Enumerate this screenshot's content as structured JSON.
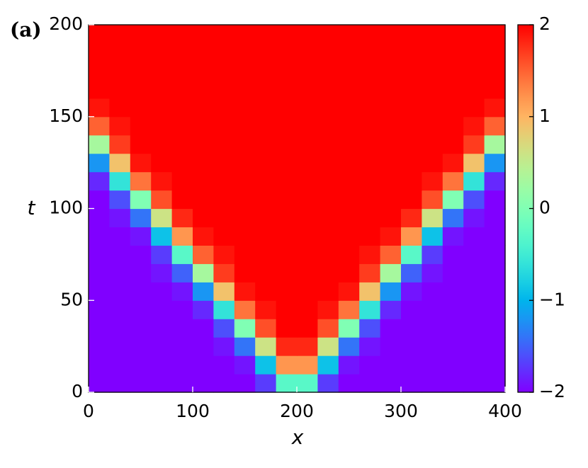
{
  "chart_data": {
    "type": "heatmap",
    "panel_label": "(a)",
    "xlabel": "x",
    "ylabel": "t",
    "colormap": "rainbow",
    "xlim": [
      0,
      400
    ],
    "ylim": [
      0,
      200
    ],
    "xticks": [
      0,
      100,
      200,
      300,
      400
    ],
    "yticks": [
      0,
      50,
      100,
      150,
      200
    ],
    "x": [
      10,
      30,
      50,
      70,
      90,
      110,
      130,
      150,
      170,
      190,
      210,
      230,
      250,
      270,
      290,
      310,
      330,
      350,
      370,
      390
    ],
    "y": [
      5,
      15,
      25,
      35,
      45,
      55,
      65,
      75,
      85,
      95,
      105,
      115,
      125,
      135,
      145,
      155,
      165,
      175,
      185,
      195
    ],
    "z": [
      [
        -2,
        -2,
        -2,
        -2,
        -2,
        -2,
        -2,
        -2,
        -1.7,
        -0.3,
        -0.3,
        -1.7,
        -2,
        -2,
        -2,
        -2,
        -2,
        -2,
        -2,
        -2
      ],
      [
        -2,
        -2,
        -2,
        -2,
        -2,
        -2,
        -2,
        -1.9,
        -0.9,
        1.2,
        1.2,
        -0.9,
        -1.9,
        -2,
        -2,
        -2,
        -2,
        -2,
        -2,
        -2
      ],
      [
        -2,
        -2,
        -2,
        -2,
        -2,
        -2,
        -1.9,
        -1.4,
        0.6,
        1.8,
        1.8,
        0.6,
        -1.4,
        -1.9,
        -2,
        -2,
        -2,
        -2,
        -2,
        -2
      ],
      [
        -2,
        -2,
        -2,
        -2,
        -2,
        -2,
        -1.6,
        0,
        1.6,
        2,
        2,
        1.6,
        0,
        -1.6,
        -2,
        -2,
        -2,
        -2,
        -2,
        -2
      ],
      [
        -2,
        -2,
        -2,
        -2,
        -2,
        -1.8,
        -0.6,
        1.4,
        1.9,
        2,
        2,
        1.9,
        1.4,
        -0.6,
        -1.8,
        -2,
        -2,
        -2,
        -2,
        -2
      ],
      [
        -2,
        -2,
        -2,
        -2,
        -1.9,
        -1.2,
        0.9,
        1.9,
        2,
        2,
        2,
        2,
        1.9,
        0.9,
        -1.2,
        -1.9,
        -2,
        -2,
        -2,
        -2
      ],
      [
        -2,
        -2,
        -2,
        -1.9,
        -1.5,
        0.3,
        1.7,
        2,
        2,
        2,
        2,
        2,
        2,
        1.7,
        0.3,
        -1.5,
        -1.9,
        -2,
        -2,
        -2
      ],
      [
        -2,
        -2,
        -2,
        -1.7,
        -0.3,
        1.5,
        1.9,
        2,
        2,
        2,
        2,
        2,
        2,
        1.9,
        1.5,
        -0.3,
        -1.7,
        -2,
        -2,
        -2
      ],
      [
        -2,
        -2,
        -1.9,
        -0.9,
        1.2,
        1.9,
        2,
        2,
        2,
        2,
        2,
        2,
        2,
        2,
        1.9,
        1.2,
        -0.9,
        -1.9,
        -2,
        -2
      ],
      [
        -2,
        -1.9,
        -1.4,
        0.6,
        1.8,
        2,
        2,
        2,
        2,
        2,
        2,
        2,
        2,
        2,
        2,
        1.8,
        0.6,
        -1.4,
        -1.9,
        -2
      ],
      [
        -2,
        -1.6,
        0,
        1.6,
        2,
        2,
        2,
        2,
        2,
        2,
        2,
        2,
        2,
        2,
        2,
        2,
        1.6,
        0,
        -1.6,
        -2
      ],
      [
        -1.8,
        -0.6,
        1.4,
        1.9,
        2,
        2,
        2,
        2,
        2,
        2,
        2,
        2,
        2,
        2,
        2,
        2,
        1.9,
        1.4,
        -0.6,
        -1.8
      ],
      [
        -1.2,
        0.9,
        1.9,
        2,
        2,
        2,
        2,
        2,
        2,
        2,
        2,
        2,
        2,
        2,
        2,
        2,
        2,
        1.9,
        0.9,
        -1.2
      ],
      [
        0.3,
        1.7,
        2,
        2,
        2,
        2,
        2,
        2,
        2,
        2,
        2,
        2,
        2,
        2,
        2,
        2,
        2,
        2,
        1.7,
        0.3
      ],
      [
        1.5,
        1.9,
        2,
        2,
        2,
        2,
        2,
        2,
        2,
        2,
        2,
        2,
        2,
        2,
        2,
        2,
        2,
        2,
        1.9,
        1.5
      ],
      [
        1.9,
        2,
        2,
        2,
        2,
        2,
        2,
        2,
        2,
        2,
        2,
        2,
        2,
        2,
        2,
        2,
        2,
        2,
        2,
        1.9
      ],
      [
        2,
        2,
        2,
        2,
        2,
        2,
        2,
        2,
        2,
        2,
        2,
        2,
        2,
        2,
        2,
        2,
        2,
        2,
        2,
        2
      ],
      [
        2,
        2,
        2,
        2,
        2,
        2,
        2,
        2,
        2,
        2,
        2,
        2,
        2,
        2,
        2,
        2,
        2,
        2,
        2,
        2
      ],
      [
        2,
        2,
        2,
        2,
        2,
        2,
        2,
        2,
        2,
        2,
        2,
        2,
        2,
        2,
        2,
        2,
        2,
        2,
        2,
        2
      ],
      [
        2,
        2,
        2,
        2,
        2,
        2,
        2,
        2,
        2,
        2,
        2,
        2,
        2,
        2,
        2,
        2,
        2,
        2,
        2,
        2
      ]
    ],
    "colorbar": {
      "lim": [
        -2,
        2
      ],
      "ticks": [
        {
          "value": -2,
          "label": "−2"
        },
        {
          "value": -1,
          "label": "−1"
        },
        0,
        1,
        2
      ]
    }
  }
}
